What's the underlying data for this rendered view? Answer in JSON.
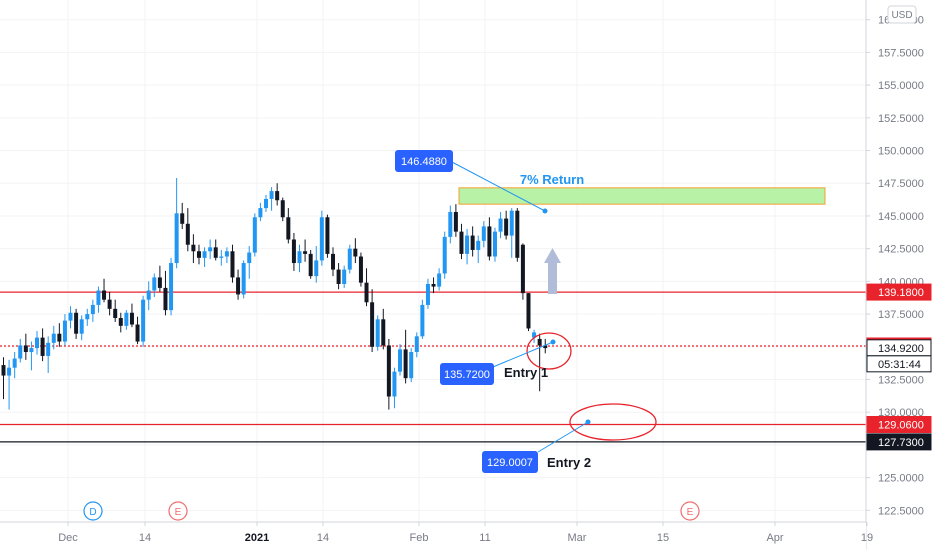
{
  "chart_data": {
    "type": "candlestick",
    "currency_label": "USD",
    "y_ticks": [
      "160.0000",
      "157.5000",
      "155.0000",
      "152.5000",
      "150.0000",
      "147.5000",
      "145.0000",
      "142.5000",
      "140.0000",
      "137.5000",
      "135.0000",
      "132.5000",
      "130.0000",
      "127.5000",
      "125.0000",
      "122.5000"
    ],
    "x_ticks": [
      {
        "label": "Dec",
        "bold": false
      },
      {
        "label": "14",
        "bold": false
      },
      {
        "label": "2021",
        "bold": true
      },
      {
        "label": "14",
        "bold": false
      },
      {
        "label": "Feb",
        "bold": false
      },
      {
        "label": "11",
        "bold": false
      },
      {
        "label": "Mar",
        "bold": false
      },
      {
        "label": "15",
        "bold": false
      },
      {
        "label": "Apr",
        "bold": false
      },
      {
        "label": "19",
        "bold": false
      }
    ],
    "candles": [
      [
        133.6,
        134.2,
        131.0,
        132.8
      ],
      [
        132.8,
        134.0,
        130.2,
        133.4
      ],
      [
        133.4,
        134.6,
        132.6,
        134.1
      ],
      [
        134.1,
        135.6,
        133.8,
        135.1
      ],
      [
        135.1,
        136.0,
        134.0,
        134.6
      ],
      [
        134.6,
        135.4,
        133.2,
        134.9
      ],
      [
        134.9,
        136.2,
        134.4,
        135.7
      ],
      [
        135.7,
        136.4,
        133.9,
        134.3
      ],
      [
        134.3,
        135.8,
        133.0,
        135.3
      ],
      [
        135.3,
        136.6,
        134.8,
        136.0
      ],
      [
        136.0,
        136.8,
        135.0,
        135.4
      ],
      [
        135.4,
        137.5,
        135.1,
        137.0
      ],
      [
        137.0,
        138.1,
        136.4,
        137.6
      ],
      [
        137.6,
        137.9,
        135.6,
        136.0
      ],
      [
        136.0,
        137.4,
        135.5,
        137.1
      ],
      [
        137.1,
        137.9,
        136.6,
        137.5
      ],
      [
        137.5,
        138.6,
        136.9,
        138.2
      ],
      [
        138.2,
        139.6,
        137.6,
        139.3
      ],
      [
        139.3,
        140.2,
        138.4,
        138.6
      ],
      [
        138.6,
        139.2,
        137.4,
        137.9
      ],
      [
        137.9,
        138.6,
        136.9,
        137.2
      ],
      [
        137.2,
        137.6,
        136.1,
        136.6
      ],
      [
        136.6,
        137.8,
        136.3,
        137.6
      ],
      [
        137.6,
        138.3,
        136.5,
        136.7
      ],
      [
        136.7,
        137.3,
        135.2,
        135.4
      ],
      [
        135.4,
        138.9,
        135.0,
        138.6
      ],
      [
        138.6,
        140.0,
        137.8,
        139.3
      ],
      [
        139.3,
        140.6,
        138.8,
        140.3
      ],
      [
        140.3,
        141.2,
        139.2,
        139.5
      ],
      [
        139.5,
        140.8,
        137.4,
        137.8
      ],
      [
        137.8,
        141.8,
        137.4,
        141.4
      ],
      [
        141.4,
        147.9,
        141.0,
        145.2
      ],
      [
        145.2,
        146.0,
        144.0,
        144.4
      ],
      [
        144.4,
        145.6,
        142.3,
        142.8
      ],
      [
        142.8,
        143.6,
        141.4,
        142.3
      ],
      [
        142.3,
        142.8,
        141.3,
        141.8
      ],
      [
        141.8,
        142.6,
        141.1,
        142.3
      ],
      [
        142.3,
        143.2,
        141.7,
        142.6
      ],
      [
        142.6,
        143.2,
        141.6,
        141.8
      ],
      [
        141.8,
        142.4,
        141.2,
        141.9
      ],
      [
        141.9,
        142.6,
        141.4,
        142.3
      ],
      [
        142.3,
        142.8,
        139.9,
        140.3
      ],
      [
        140.3,
        140.9,
        138.6,
        139.0
      ],
      [
        139.0,
        141.6,
        138.7,
        141.4
      ],
      [
        141.4,
        142.7,
        140.2,
        142.2
      ],
      [
        142.2,
        145.2,
        141.9,
        144.9
      ],
      [
        144.9,
        146.0,
        144.6,
        145.6
      ],
      [
        145.6,
        146.6,
        145.3,
        146.3
      ],
      [
        146.3,
        147.2,
        145.4,
        146.9
      ],
      [
        146.9,
        147.5,
        145.8,
        146.2
      ],
      [
        146.2,
        146.4,
        144.6,
        144.9
      ],
      [
        144.9,
        145.6,
        142.9,
        143.2
      ],
      [
        143.2,
        143.7,
        140.8,
        141.4
      ],
      [
        141.4,
        142.8,
        140.7,
        142.3
      ],
      [
        142.3,
        143.2,
        141.5,
        142.1
      ],
      [
        142.1,
        142.4,
        140.2,
        140.4
      ],
      [
        140.4,
        142.7,
        139.9,
        141.6
      ],
      [
        141.6,
        145.4,
        141.2,
        144.9
      ],
      [
        144.9,
        145.1,
        141.8,
        142.1
      ],
      [
        142.1,
        142.6,
        140.4,
        140.9
      ],
      [
        140.9,
        141.4,
        139.4,
        139.8
      ],
      [
        139.8,
        141.2,
        139.5,
        140.9
      ],
      [
        140.9,
        142.8,
        140.6,
        142.5
      ],
      [
        142.5,
        143.3,
        141.4,
        141.9
      ],
      [
        141.9,
        142.2,
        139.6,
        139.9
      ],
      [
        139.9,
        141.0,
        138.1,
        138.4
      ],
      [
        138.4,
        139.4,
        134.6,
        135.0
      ],
      [
        135.0,
        137.4,
        134.7,
        137.1
      ],
      [
        137.1,
        137.9,
        134.8,
        135.1
      ],
      [
        135.1,
        135.6,
        130.2,
        131.2
      ],
      [
        131.2,
        133.4,
        130.3,
        133.1
      ],
      [
        133.1,
        135.2,
        132.8,
        134.8
      ],
      [
        134.8,
        136.3,
        132.2,
        132.6
      ],
      [
        132.6,
        134.9,
        132.3,
        134.6
      ],
      [
        134.6,
        136.1,
        134.2,
        135.8
      ],
      [
        135.8,
        138.6,
        135.6,
        138.2
      ],
      [
        138.2,
        140.2,
        137.9,
        139.8
      ],
      [
        139.8,
        140.3,
        139.1,
        139.6
      ],
      [
        139.6,
        141.0,
        139.3,
        140.6
      ],
      [
        140.6,
        143.8,
        140.2,
        143.4
      ],
      [
        143.4,
        145.8,
        142.9,
        145.3
      ],
      [
        145.3,
        145.9,
        143.4,
        143.8
      ],
      [
        143.8,
        144.4,
        141.7,
        142.1
      ],
      [
        142.1,
        144.0,
        141.3,
        143.5
      ],
      [
        143.5,
        144.2,
        141.9,
        142.4
      ],
      [
        142.4,
        143.5,
        141.4,
        143.1
      ],
      [
        143.1,
        144.6,
        142.6,
        144.2
      ],
      [
        144.2,
        144.9,
        141.6,
        141.9
      ],
      [
        141.9,
        144.1,
        141.5,
        143.8
      ],
      [
        143.8,
        145.3,
        143.3,
        144.8
      ],
      [
        144.8,
        145.4,
        143.2,
        143.5
      ],
      [
        143.5,
        145.6,
        141.8,
        145.4
      ],
      [
        145.4,
        145.6,
        141.5,
        141.8
      ],
      [
        142.8,
        142.9,
        138.6,
        139.1
      ],
      [
        139.1,
        139.1,
        136.2,
        136.4
      ],
      [
        135.7,
        136.3,
        135.3,
        136.1
      ],
      [
        135.6,
        136.0,
        131.6,
        135.1
      ],
      [
        135.1,
        135.6,
        134.5,
        134.9
      ]
    ],
    "horizontal_levels": [
      {
        "price": 139.18,
        "label": "139.1800",
        "color": "#e8232b",
        "style": "solid"
      },
      {
        "price": 135.06,
        "label": "135.0600",
        "color": "#e8232b",
        "style": "dotted"
      },
      {
        "price": 134.92,
        "label": "134.9200",
        "color": "#131722",
        "style": "last"
      },
      {
        "price": 129.06,
        "label": "129.0600",
        "color": "#e8232b",
        "style": "solid"
      },
      {
        "price": 127.73,
        "label": "127.7300",
        "color": "#131722",
        "style": "solid"
      }
    ],
    "countdown": "05:31:44",
    "target_zone": {
      "top": 147.15,
      "bottom": 145.9
    },
    "annotations": [
      {
        "label": "146.4880",
        "price": 146.488
      },
      {
        "label": "135.7200",
        "price": 135.72
      },
      {
        "label": "129.0007",
        "price": 129.0007
      }
    ],
    "notes": [
      {
        "text": "7% Return",
        "color": "#2196f3"
      },
      {
        "text": "Entry 1",
        "color": "#131722"
      },
      {
        "text": "Entry 2",
        "color": "#131722"
      }
    ],
    "event_markers": [
      "D",
      "E",
      "E"
    ],
    "colors": {
      "up": "#2196f3",
      "down": "#131722",
      "level": "#e8232b",
      "zone_fill": "#b7f2a7",
      "zone_border": "#f0a030",
      "callout": "#2962ff",
      "arrow": "#b1bdd8"
    }
  }
}
